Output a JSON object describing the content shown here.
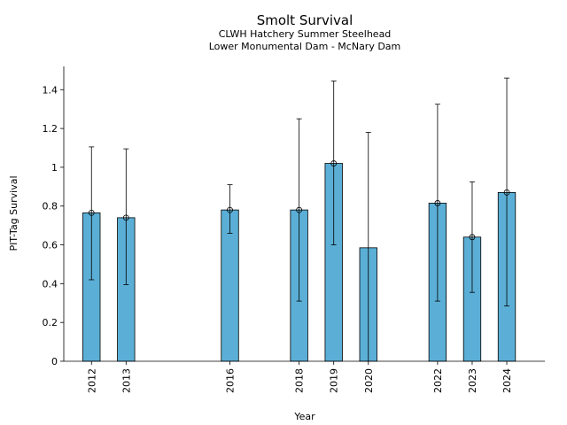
{
  "chart_data": {
    "type": "bar",
    "title": "Smolt Survival",
    "subtitle_lines": [
      "CLWH Hatchery Summer Steelhead",
      "Lower Monumental Dam - McNary Dam"
    ],
    "xlabel": "Year",
    "ylabel": "PIT-Tag Survival",
    "x_range": [
      2011.2,
      2025.1
    ],
    "ylim": [
      0,
      1.52
    ],
    "yticks": [
      {
        "value": 0,
        "label": "0"
      },
      {
        "value": 0.2,
        "label": "0.2"
      },
      {
        "value": 0.4,
        "label": "0.4"
      },
      {
        "value": 0.6,
        "label": "0.6"
      },
      {
        "value": 0.8,
        "label": "0.8"
      },
      {
        "value": 1.0,
        "label": "1"
      },
      {
        "value": 1.2,
        "label": "1.2"
      },
      {
        "value": 1.4,
        "label": "1.4"
      }
    ],
    "bar_color": "#5bafd6",
    "bar_width_years": 0.5,
    "grid": false,
    "points": [
      {
        "year": 2012,
        "label": "2012",
        "value": 0.765,
        "lower": 0.42,
        "upper": 1.105,
        "marker": true
      },
      {
        "year": 2013,
        "label": "2013",
        "value": 0.74,
        "lower": 0.395,
        "upper": 1.095,
        "marker": true
      },
      {
        "year": 2016,
        "label": "2016",
        "value": 0.78,
        "lower": 0.66,
        "upper": 0.91,
        "marker": true
      },
      {
        "year": 2018,
        "label": "2018",
        "value": 0.78,
        "lower": 0.31,
        "upper": 1.25,
        "marker": true
      },
      {
        "year": 2019,
        "label": "2019",
        "value": 1.02,
        "lower": 0.6,
        "upper": 1.445,
        "marker": true
      },
      {
        "year": 2020,
        "label": "2020",
        "value": 0.585,
        "lower": 0.0,
        "upper": 1.18,
        "marker": false
      },
      {
        "year": 2022,
        "label": "2022",
        "value": 0.815,
        "lower": 0.31,
        "upper": 1.325,
        "marker": true
      },
      {
        "year": 2023,
        "label": "2023",
        "value": 0.64,
        "lower": 0.355,
        "upper": 0.925,
        "marker": true
      },
      {
        "year": 2024,
        "label": "2024",
        "value": 0.87,
        "lower": 0.285,
        "upper": 1.46,
        "marker": true
      }
    ]
  }
}
